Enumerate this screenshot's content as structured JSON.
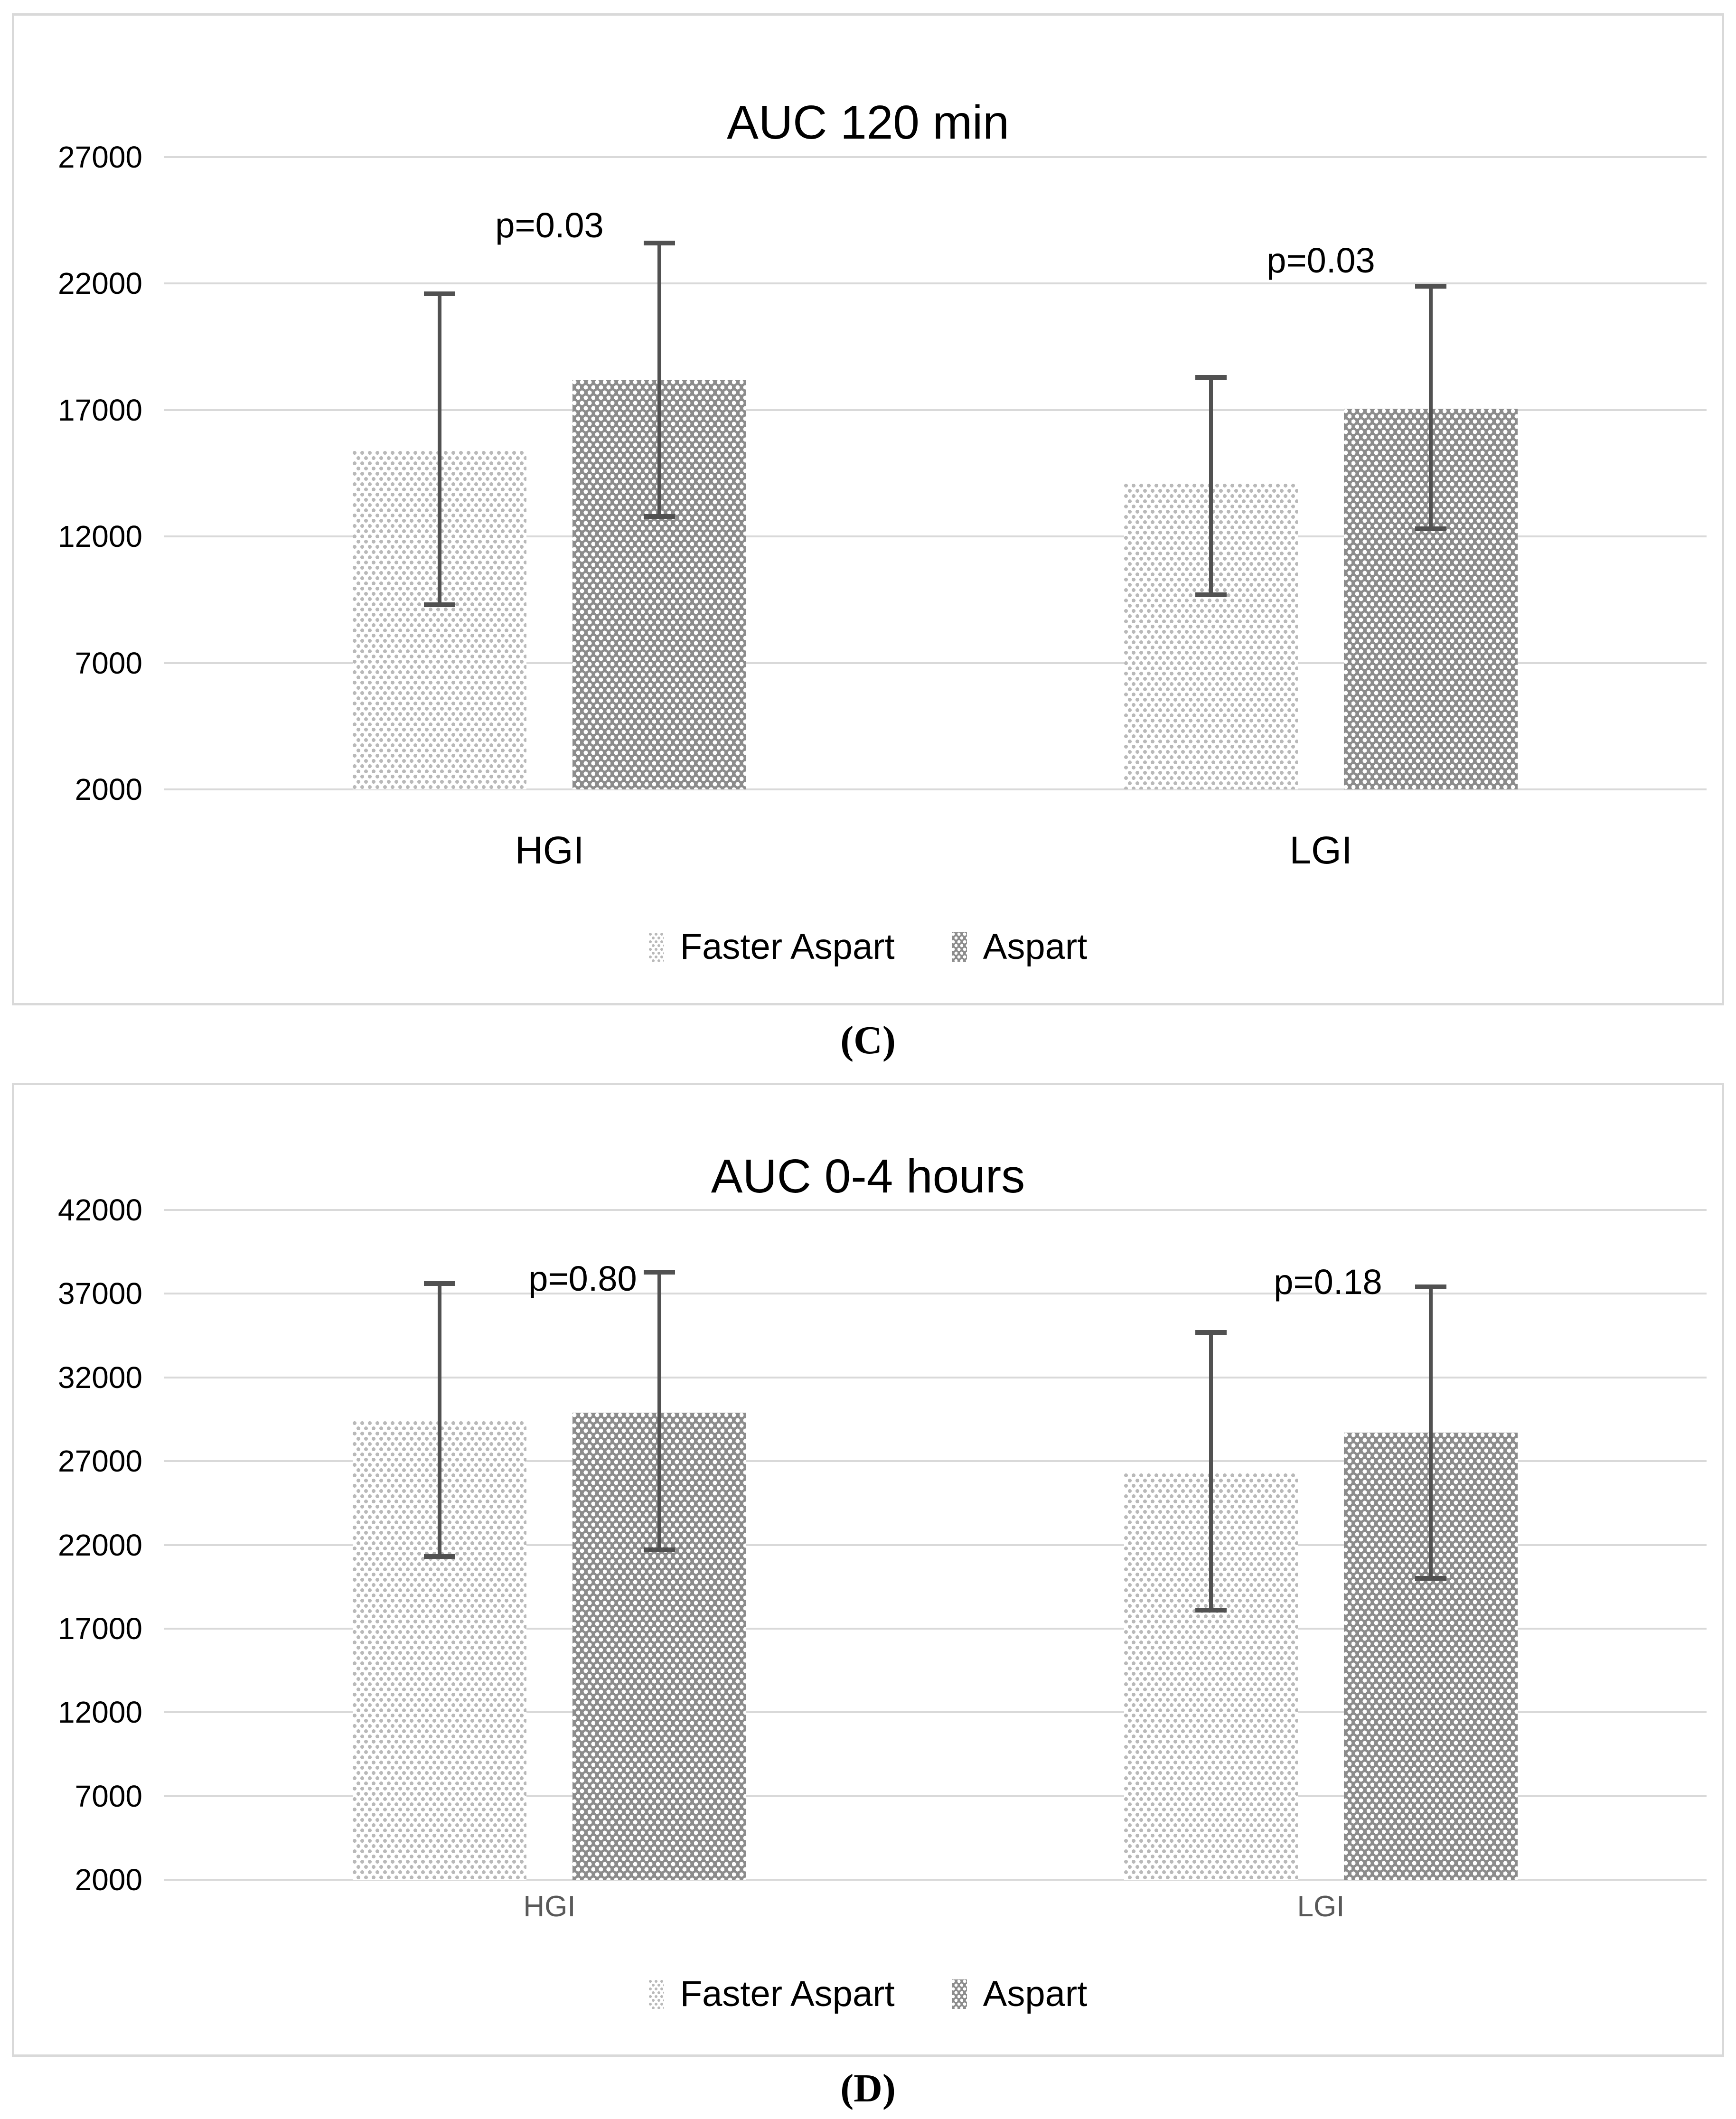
{
  "colors": {
    "background": "#ffffff",
    "gridline": "#d9d9d9",
    "chart_border": "#d9d9d9",
    "error_bar": "#515151",
    "light_pattern_dot": "#b9b9b9",
    "dark_pattern_fill": "#8c8c8c",
    "dark_pattern_dot": "#ffffff",
    "text": "#000000",
    "small_x_label": "#595959"
  },
  "chart_data": [
    {
      "type": "bar",
      "title": "AUC 120 min",
      "caption": "(C)",
      "categories": [
        "HGI",
        "LGI"
      ],
      "series": [
        {
          "name": "Faster Aspart",
          "pattern": "light-dots",
          "values": [
            15400,
            14100
          ],
          "error_low": [
            9300,
            9700
          ],
          "error_high": [
            21600,
            18300
          ]
        },
        {
          "name": "Aspart",
          "pattern": "dark-dots",
          "values": [
            18200,
            17050
          ],
          "error_low": [
            12800,
            12300
          ],
          "error_high": [
            23600,
            21900
          ]
        }
      ],
      "annotations": [
        {
          "text": "p=0.03",
          "category": "HGI",
          "value": 24300,
          "dx": 0
        },
        {
          "text": "p=0.03",
          "category": "LGI",
          "value": 22900,
          "dx": 0
        }
      ],
      "y_axis": {
        "min": 2000,
        "max": 27000,
        "step": 5000,
        "ticks": [
          27000,
          22000,
          17000,
          12000,
          7000,
          2000
        ]
      },
      "bars_base": 2000,
      "grid": true,
      "legend_position": "bottom",
      "x_label_style": "large-black"
    },
    {
      "type": "bar",
      "title": "AUC 0-4 hours",
      "caption": "(D)",
      "categories": [
        "HGI",
        "LGI"
      ],
      "series": [
        {
          "name": "Faster Aspart",
          "pattern": "light-dots",
          "values": [
            29400,
            26300
          ],
          "error_low": [
            21300,
            18100
          ],
          "error_high": [
            37600,
            34700
          ]
        },
        {
          "name": "Aspart",
          "pattern": "dark-dots",
          "values": [
            29900,
            28700
          ],
          "error_low": [
            21700,
            20000
          ],
          "error_high": [
            38300,
            37400
          ]
        }
      ],
      "annotations": [
        {
          "text": "p=0.80",
          "category": "HGI",
          "value": 37900,
          "dx": 70
        },
        {
          "text": "p=0.18",
          "category": "LGI",
          "value": 37700,
          "dx": 15
        }
      ],
      "y_axis": {
        "min": 2000,
        "max": 42000,
        "step": 5000,
        "ticks": [
          42000,
          37000,
          32000,
          27000,
          22000,
          17000,
          12000,
          7000,
          2000
        ]
      },
      "bars_base": 2000,
      "grid": true,
      "legend_position": "bottom",
      "x_label_style": "small-gray"
    }
  ]
}
